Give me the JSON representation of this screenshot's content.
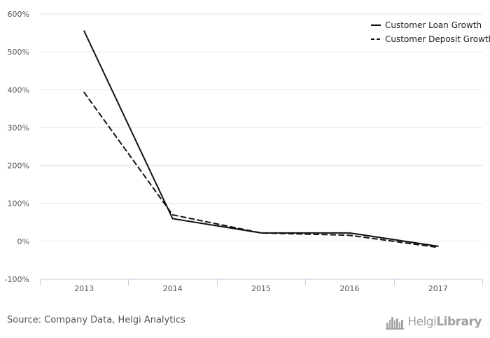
{
  "chart_data": {
    "type": "line",
    "categories": [
      "2013",
      "2014",
      "2015",
      "2016",
      "2017"
    ],
    "y_tick_labels": [
      "-100%",
      "0%",
      "100%",
      "200%",
      "300%",
      "400%",
      "500%",
      "600%"
    ],
    "y_tick_values": [
      -100,
      0,
      100,
      200,
      300,
      400,
      500,
      600
    ],
    "ylim": [
      -100,
      600
    ],
    "grid": true,
    "legend_position": "top-right",
    "series": [
      {
        "name": "Customer Loan Growth",
        "line_style": "solid",
        "color": "#111111",
        "values": [
          555,
          60,
          22,
          22,
          -13
        ]
      },
      {
        "name": "Customer Deposit Growth",
        "line_style": "dashed",
        "color": "#111111",
        "values": [
          393,
          70,
          22,
          16,
          -16
        ]
      }
    ]
  },
  "footer": {
    "source": "Source: Company Data, Helgi Analytics",
    "brand_prefix": "Helgi",
    "brand_suffix": "Library",
    "logo_icon": "city-skyline-icon"
  }
}
